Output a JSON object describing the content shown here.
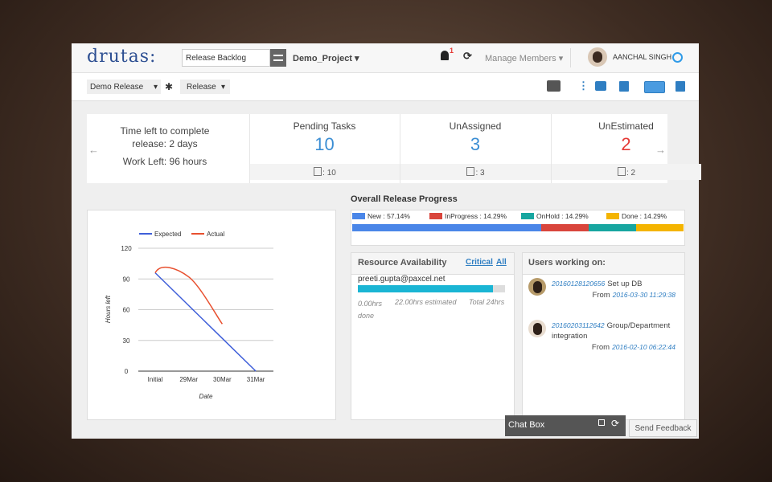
{
  "header": {
    "logo": "drutas:",
    "search": "Release Backlog",
    "project": "Demo_Project",
    "notification_count": 1,
    "manage_members": "Manage Members",
    "user_name": "AANCHAL SINGH"
  },
  "toolbar": {
    "release": "Demo Release",
    "release_type": "Release"
  },
  "summary": {
    "time_left": "Time left to complete release: 2 days",
    "work_left": "Work Left: 96 hours",
    "cards": [
      {
        "title": "Pending Tasks",
        "value": 10,
        "color": "#3b8ed4",
        "footer": ": 10"
      },
      {
        "title": "UnAssigned",
        "value": 3,
        "color": "#3b8ed4",
        "footer": ": 3"
      },
      {
        "title": "UnEstimated",
        "value": 2,
        "color": "#e53935",
        "footer": ": 2"
      }
    ]
  },
  "chart_data": [
    {
      "type": "line",
      "categories": [
        "Initial",
        "29Mar",
        "30Mar",
        "31Mar"
      ],
      "series": [
        {
          "name": "Expected",
          "color": "#3f5fd9",
          "values": [
            96,
            64,
            32,
            0
          ]
        },
        {
          "name": "Actual",
          "color": "#e8502f",
          "values": [
            96,
            92,
            46,
            null
          ]
        }
      ],
      "ylim": [
        0,
        120
      ],
      "yticks": [
        0,
        30,
        60,
        90,
        120
      ],
      "y_label": "Hours left",
      "x_label": "Date",
      "grid": true
    },
    {
      "type": "bar",
      "title": "Overall Release Progress",
      "stacked": true,
      "xlim": [
        0,
        100
      ],
      "series": [
        {
          "name": "New : 57.14%",
          "color": "#4a86e8",
          "values": [
            57.14
          ]
        },
        {
          "name": "InProgress : 14.29%",
          "color": "#d9453c",
          "values": [
            14.29
          ]
        },
        {
          "name": "OnHold : 14.29%",
          "color": "#17a6a0",
          "values": [
            14.29
          ]
        },
        {
          "name": "Done : 14.29%",
          "color": "#f4b400",
          "values": [
            14.29
          ]
        }
      ]
    }
  ],
  "resource": {
    "title": "Resource Availability",
    "filters": [
      "Critical",
      "All"
    ],
    "email": "preeti.gupta@paxcel.net",
    "done": "0.00hrs done",
    "estimated": {
      "value": 22,
      "label": "22.00hrs estimated"
    },
    "total": {
      "value": 24,
      "label": "Total 24hrs"
    }
  },
  "users": {
    "title": "Users working on:",
    "items": [
      {
        "id": "20160128120656",
        "task": "Set up DB",
        "from_label": "From",
        "from": "2016-03-30 11:29:38"
      },
      {
        "id": "20160203112642",
        "task": "Group/Department integration",
        "from_label": "From",
        "from": "2016-02-10 06:22:44"
      }
    ]
  },
  "chat": {
    "title": "Chat Box"
  },
  "feedback": "Send Feedback"
}
